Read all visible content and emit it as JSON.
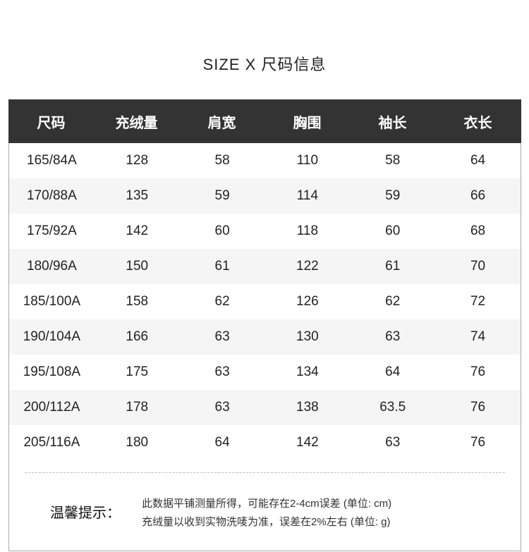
{
  "title": "SIZE  X  尺码信息",
  "table": {
    "headers": [
      "尺码",
      "充绒量",
      "肩宽",
      "胸围",
      "袖长",
      "衣长"
    ],
    "rows": [
      [
        "165/84A",
        "128",
        "58",
        "110",
        "58",
        "64"
      ],
      [
        "170/88A",
        "135",
        "59",
        "114",
        "59",
        "66"
      ],
      [
        "175/92A",
        "142",
        "60",
        "118",
        "60",
        "68"
      ],
      [
        "180/96A",
        "150",
        "61",
        "122",
        "61",
        "70"
      ],
      [
        "185/100A",
        "158",
        "62",
        "126",
        "62",
        "72"
      ],
      [
        "190/104A",
        "166",
        "63",
        "130",
        "63",
        "74"
      ],
      [
        "195/108A",
        "175",
        "63",
        "134",
        "64",
        "76"
      ],
      [
        "200/112A",
        "178",
        "63",
        "138",
        "63.5",
        "76"
      ],
      [
        "205/116A",
        "180",
        "64",
        "142",
        "63",
        "76"
      ]
    ]
  },
  "tips": {
    "label": "温馨提示：",
    "lines": [
      "此数据平铺测量所得，可能存在2-4cm误差 (单位: cm)",
      "充绒量以收到实物洗唛为准，误差在2%左右 (单位: g)"
    ]
  }
}
